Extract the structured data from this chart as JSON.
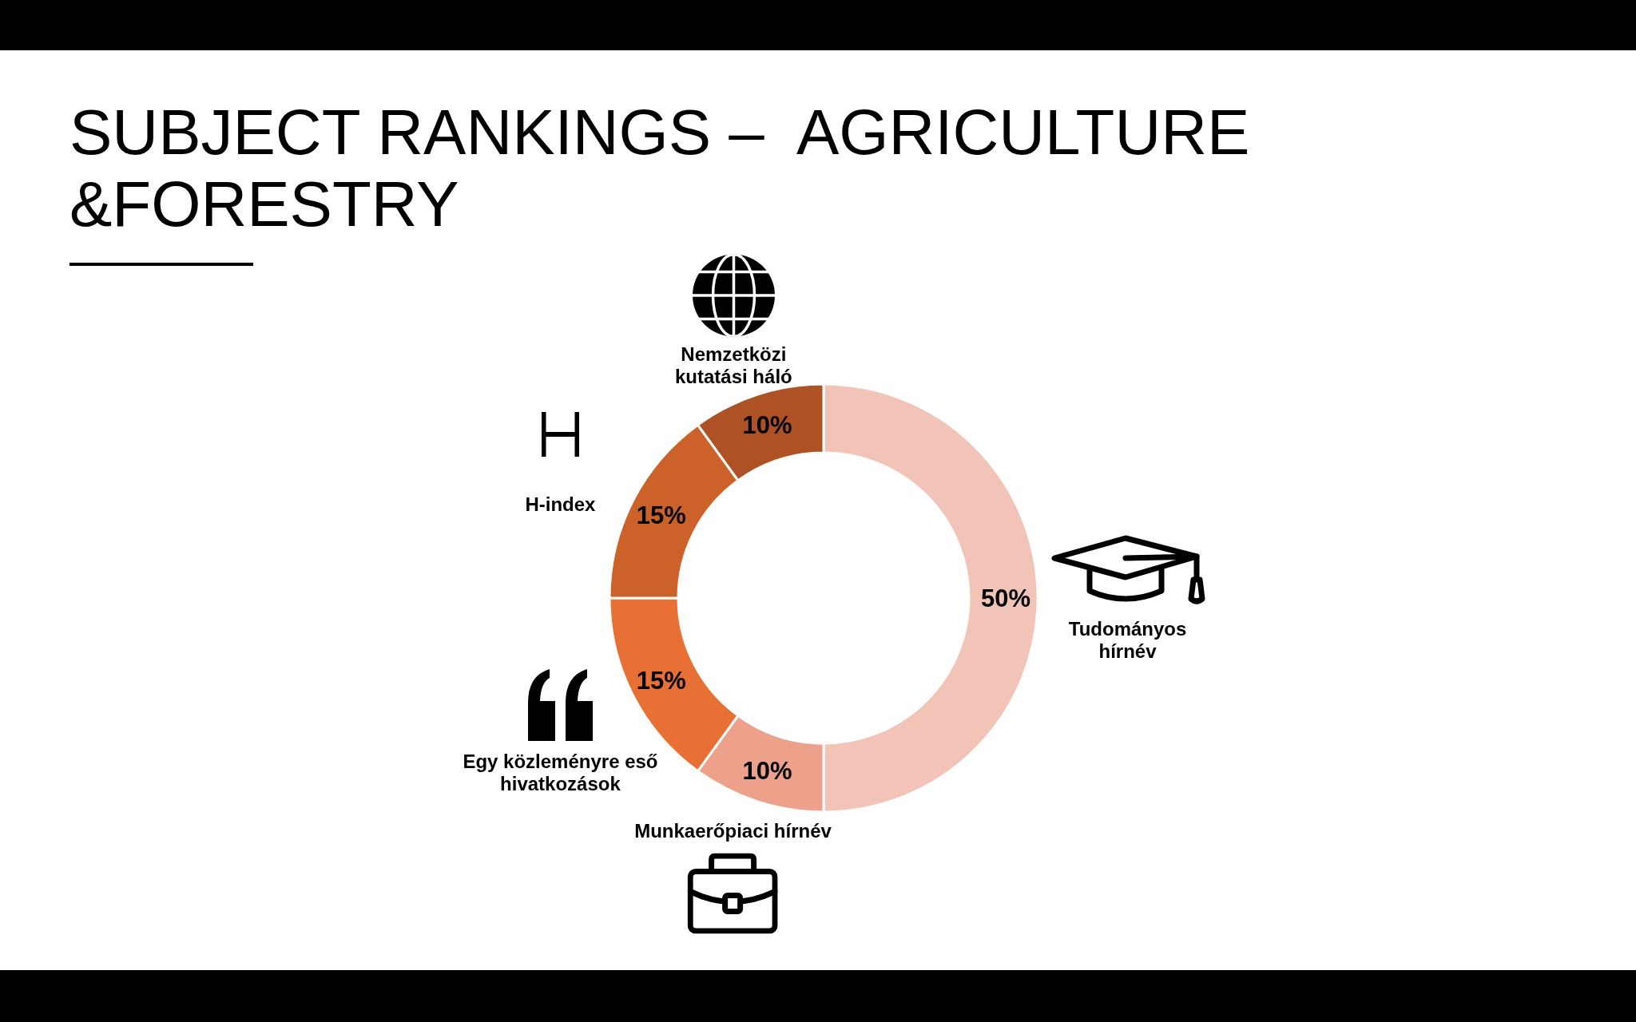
{
  "chart_data": {
    "type": "donut",
    "title": "SUBJECT RANKINGS –  AGRICULTURE &FORESTRY",
    "categories": [
      "Tudományos hírnév",
      "Munkaerőpiaci hírnév",
      "Egy közleményre eső hivatkozások",
      "H-index",
      "Nemzetközi kutatási háló"
    ],
    "values": [
      50,
      10,
      15,
      15,
      10
    ],
    "colors": [
      "#f2c3b7",
      "#eda08a",
      "#e97034",
      "#cc6129",
      "#ae5225"
    ],
    "value_labels": [
      "50%",
      "10%",
      "15%",
      "15%",
      "10%"
    ]
  }
}
